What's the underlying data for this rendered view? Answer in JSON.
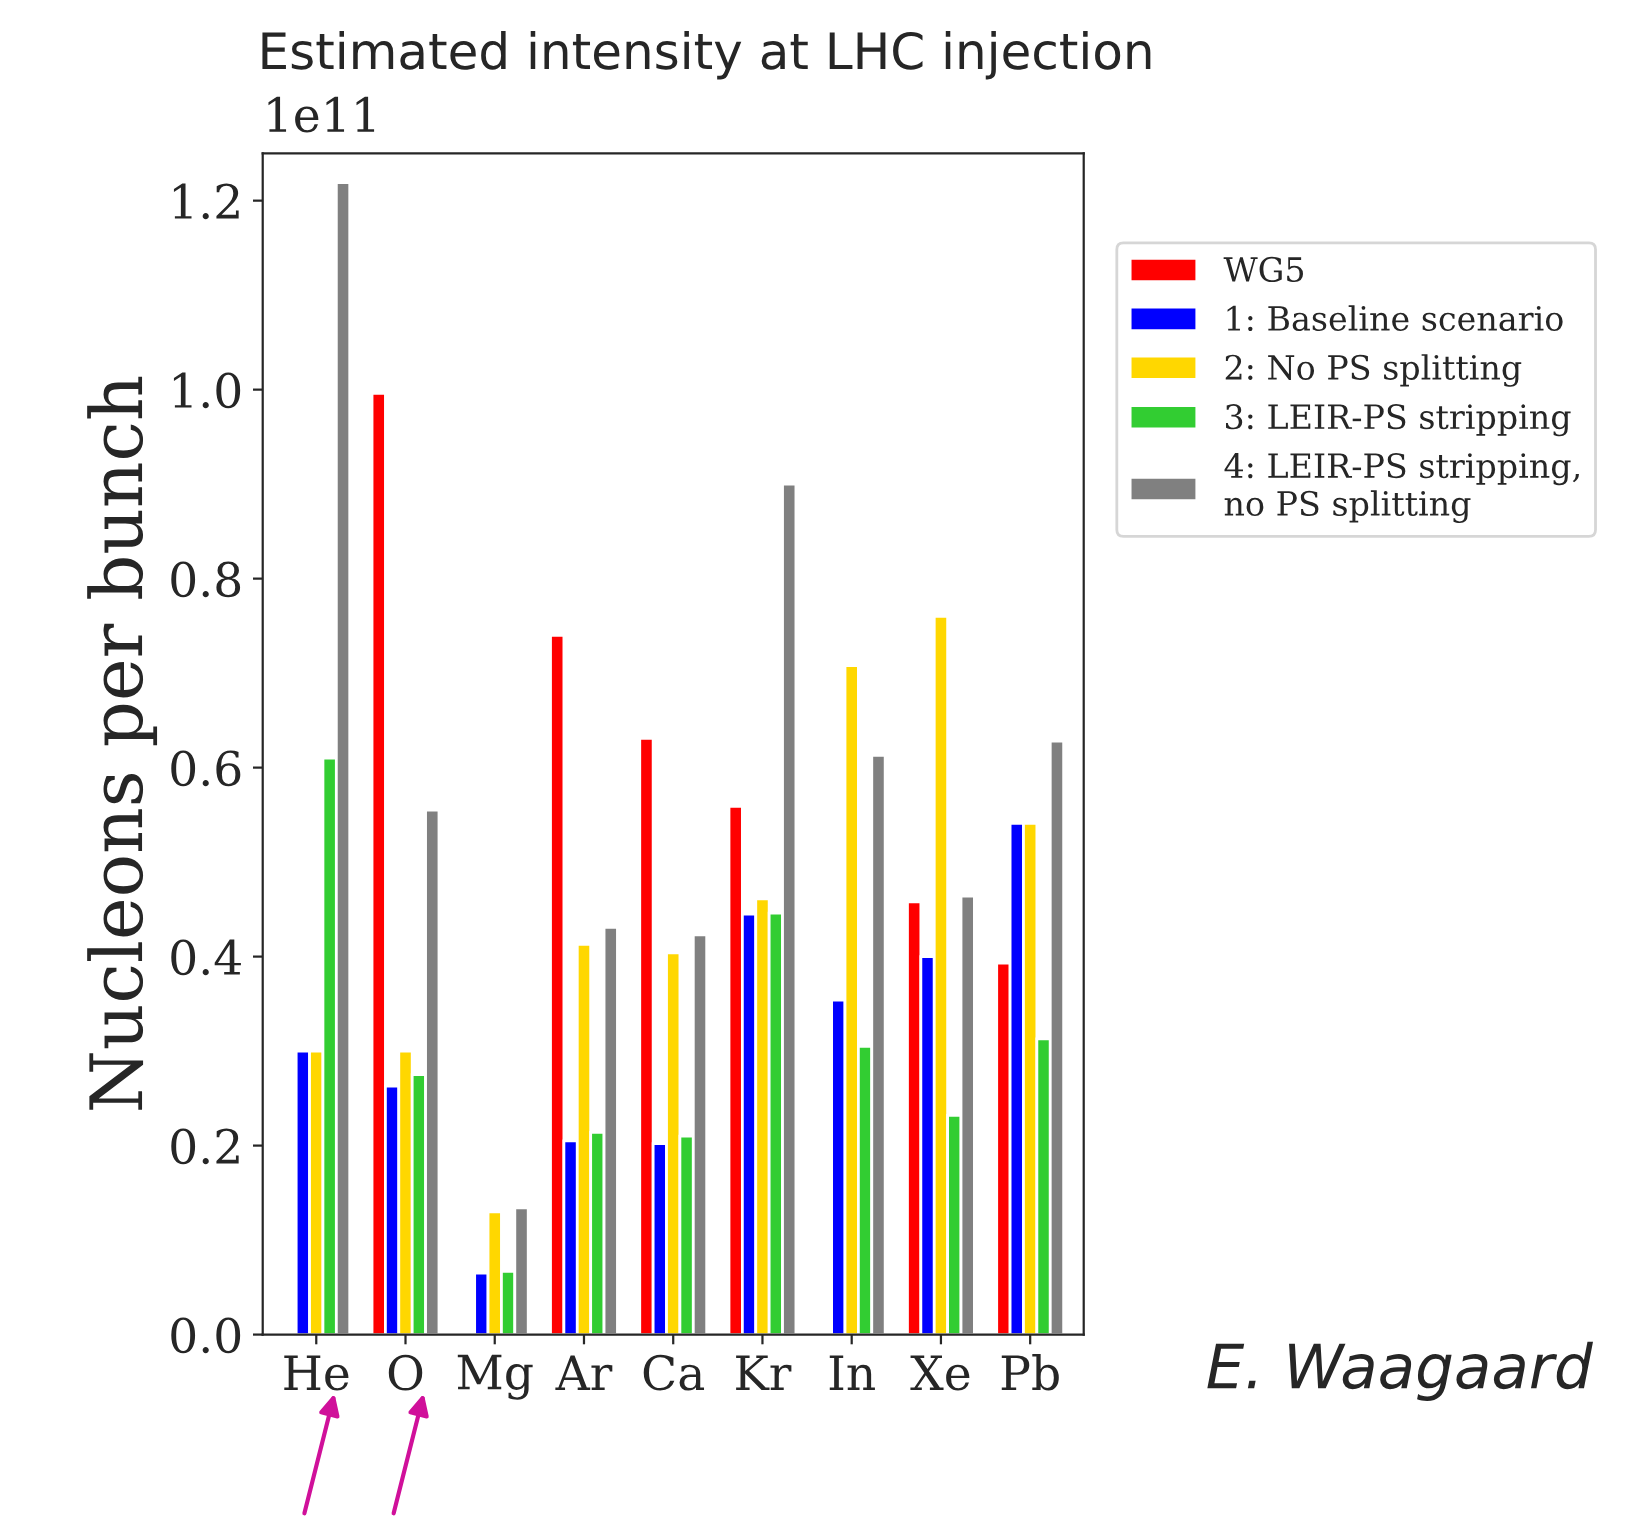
{
  "chart_data": {
    "type": "bar",
    "title": "Estimated intensity at LHC injection",
    "ylabel": "Nucleons per bunch",
    "categories": [
      "He",
      "O",
      "Mg",
      "Ar",
      "Ca",
      "Kr",
      "In",
      "Xe",
      "Pb"
    ],
    "series": [
      {
        "name": "WG5",
        "color": "#ff0000",
        "values": [
          null,
          0.996,
          null,
          0.74,
          0.631,
          0.559,
          null,
          0.458,
          0.393
        ]
      },
      {
        "name": "1: Baseline scenario",
        "color": "#0000ff",
        "values": [
          0.3,
          0.263,
          0.065,
          0.205,
          0.202,
          0.445,
          0.354,
          0.4,
          0.541
        ]
      },
      {
        "name": "2: No PS splitting",
        "color": "#ffd700",
        "values": [
          0.3,
          0.3,
          0.13,
          0.413,
          0.404,
          0.461,
          0.708,
          0.76,
          0.541
        ]
      },
      {
        "name": "3: LEIR-PS stripping",
        "color": "#32cd32",
        "values": [
          0.61,
          0.275,
          0.067,
          0.214,
          0.21,
          0.446,
          0.305,
          0.232,
          0.313
        ]
      },
      {
        "name": "4: LEIR-PS stripping,\nno PS splitting",
        "color": "#808080",
        "values": [
          1.219,
          0.555,
          0.134,
          0.431,
          0.423,
          0.9,
          0.613,
          0.464,
          0.628
        ]
      }
    ],
    "ylim": [
      0,
      1.25
    ],
    "yticks": [
      {
        "value": 0,
        "label": "0.0"
      },
      0.2,
      0.4,
      0.6,
      0.8,
      {
        "value": 1,
        "label": "1.0"
      },
      1.2
    ],
    "annotations": [
      "1e11",
      "E. Waagaard"
    ],
    "legend": "right",
    "grid": false
  }
}
